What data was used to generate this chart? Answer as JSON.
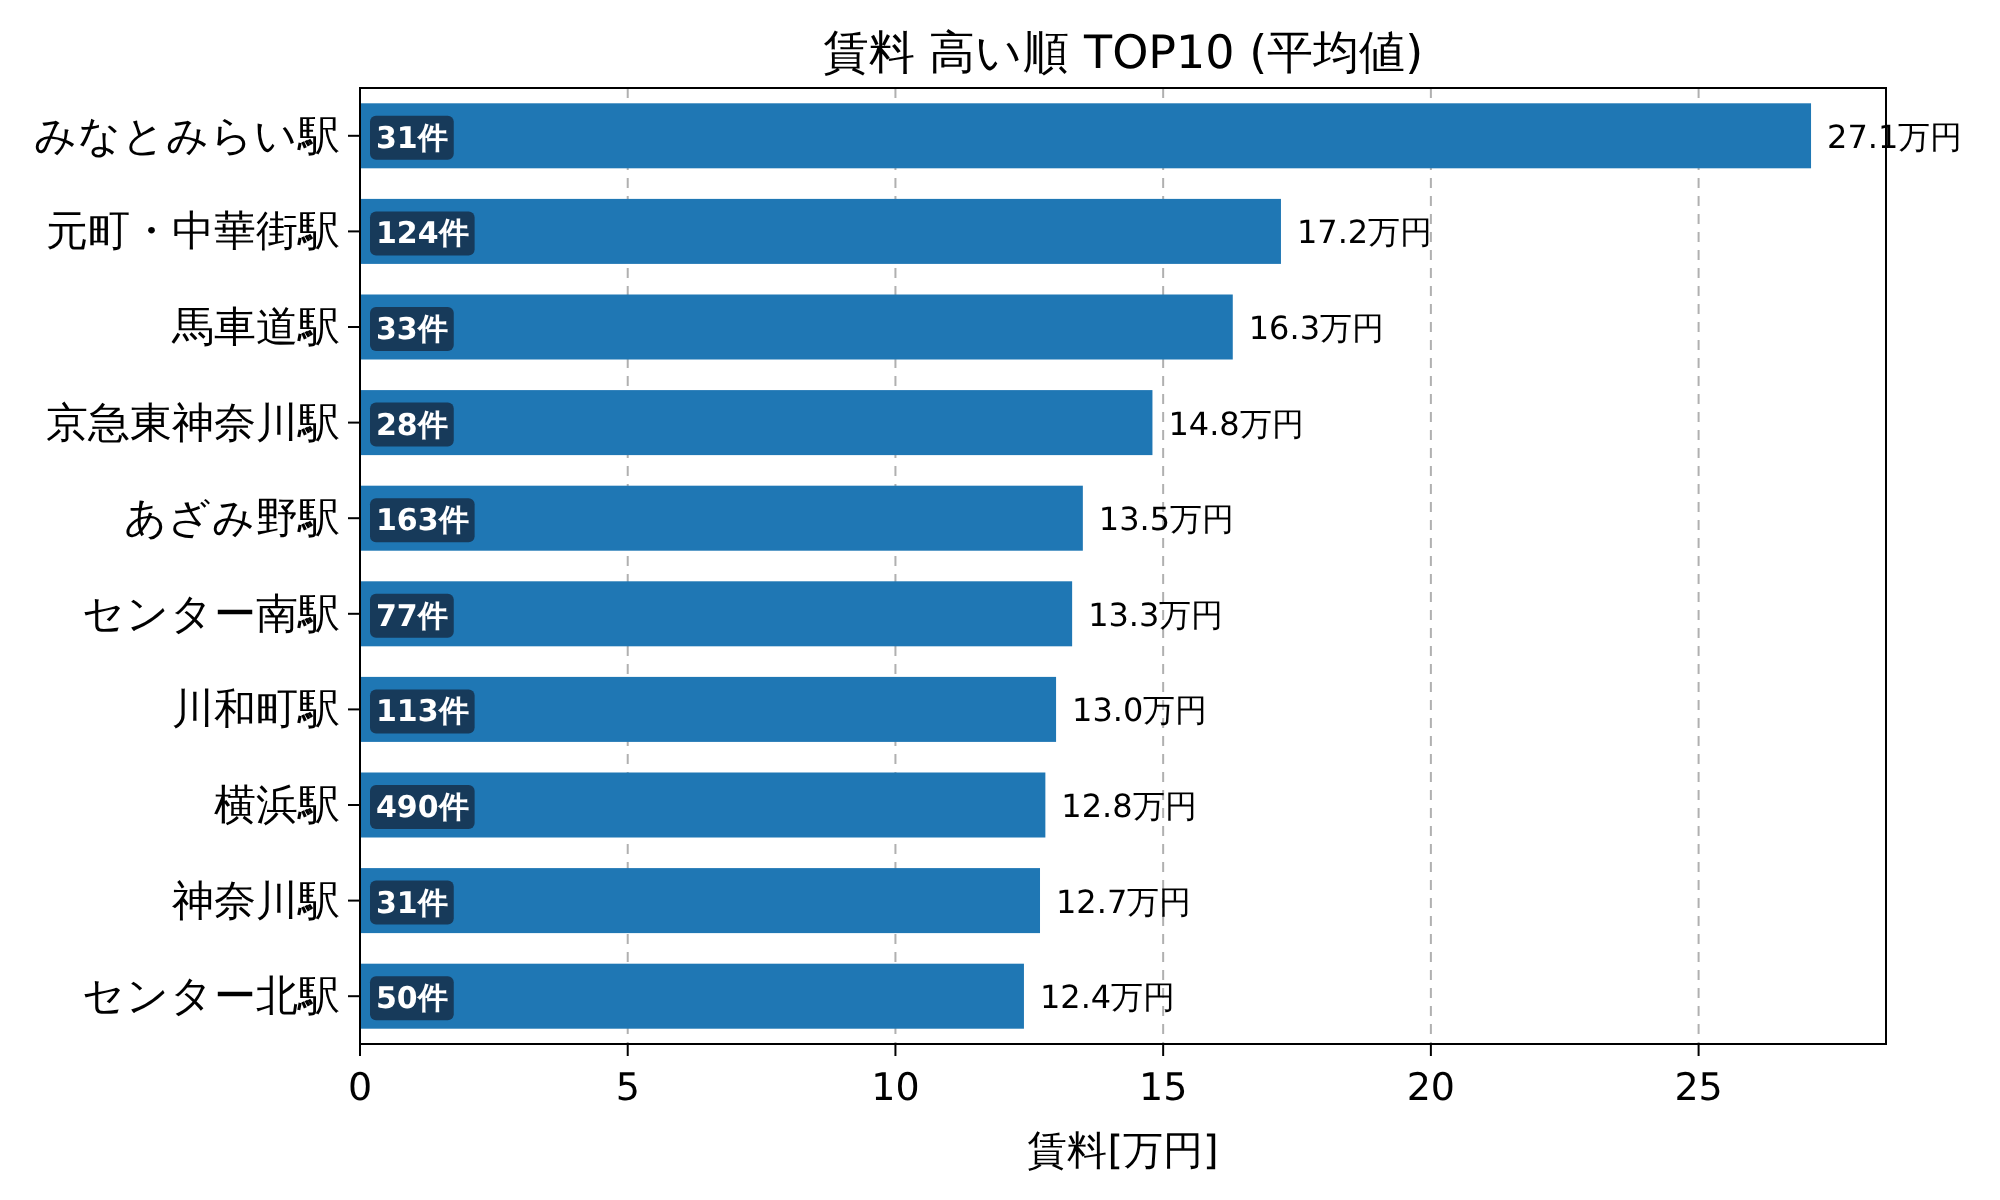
{
  "chart_data": {
    "type": "bar",
    "orientation": "horizontal",
    "title": "賃料 高い順 TOP10 (平均値)",
    "xlabel": "賃料[万円]",
    "categories": [
      "みなとみらい駅",
      "元町・中華街駅",
      "馬車道駅",
      "京急東神奈川駅",
      "あざみ野駅",
      "センター南駅",
      "川和町駅",
      "横浜駅",
      "神奈川駅",
      "センター北駅"
    ],
    "values": [
      27.1,
      17.2,
      16.3,
      14.8,
      13.5,
      13.3,
      13.0,
      12.8,
      12.7,
      12.4
    ],
    "value_labels": [
      "27.1万円",
      "17.2万円",
      "16.3万円",
      "14.8万円",
      "13.5万円",
      "13.3万円",
      "13.0万円",
      "12.8万円",
      "12.7万円",
      "12.4万円"
    ],
    "color": "#1f77b4",
    "xlim": [
      0,
      28.5
    ],
    "xticks": [
      0,
      5,
      10,
      15,
      20,
      25
    ],
    "grid": "x",
    "annotations": [
      {
        "text": "31件",
        "y": "みなとみらい駅"
      },
      {
        "text": "124件",
        "y": "元町・中華街駅"
      },
      {
        "text": "33件",
        "y": "馬車道駅"
      },
      {
        "text": "28件",
        "y": "京急東神奈川駅"
      },
      {
        "text": "163件",
        "y": "あざみ野駅"
      },
      {
        "text": "77件",
        "y": "センター南駅"
      },
      {
        "text": "113件",
        "y": "川和町駅"
      },
      {
        "text": "490件",
        "y": "横浜駅"
      },
      {
        "text": "31件",
        "y": "神奈川駅"
      },
      {
        "text": "50件",
        "y": "センター北駅"
      }
    ]
  }
}
